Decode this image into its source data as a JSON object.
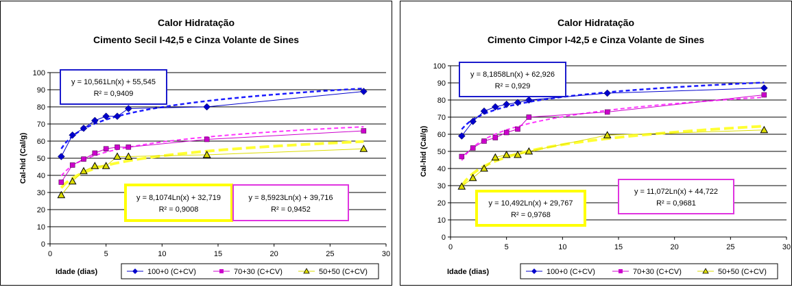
{
  "chart_data": [
    {
      "type": "scatter",
      "title": "Calor Hidratação",
      "subtitle": "Cimento Secil I-42,5 e Cinza Volante de Sines",
      "xlabel": "Idade (dias)",
      "ylabel": "Cal-hid (Cal/g)",
      "xlim": [
        0,
        30
      ],
      "ylim": [
        0,
        100
      ],
      "xticks": [
        "0",
        "5",
        "10",
        "15",
        "20",
        "25",
        "30"
      ],
      "yticks": [
        "0",
        "10",
        "20",
        "30",
        "40",
        "50",
        "60",
        "70",
        "80",
        "90",
        "100"
      ],
      "grid": true,
      "legend": "bottom",
      "series": [
        {
          "name": "100+0 (C+CV)",
          "color": "#0000cc",
          "marker": "diamond",
          "x": [
            1,
            2,
            3,
            4,
            5,
            6,
            7,
            14,
            28
          ],
          "y": [
            51,
            63.5,
            67.5,
            72,
            74.5,
            74.5,
            79,
            80,
            89
          ],
          "trend": {
            "a": 10.561,
            "b": 55.545,
            "color": "#1a1aff",
            "equation": "y = 10,561Ln(x) + 55,545",
            "r2": "R² = 0,9409"
          }
        },
        {
          "name": "70+30 (C+CV)",
          "color": "#cc00cc",
          "marker": "square",
          "x": [
            1,
            2,
            3,
            4,
            5,
            6,
            7,
            14,
            28
          ],
          "y": [
            36,
            46,
            49.5,
            53,
            55.5,
            56.5,
            56.5,
            61,
            66
          ],
          "trend": {
            "a": 8.5923,
            "b": 39.716,
            "color": "#ff33ff",
            "equation": "y = 8,5923Ln(x) + 39,716",
            "r2": "R² = 0,9452"
          }
        },
        {
          "name": "50+50 (C+CV)",
          "color": "#dddd00",
          "marker": "triangle",
          "x": [
            1,
            2,
            3,
            4,
            5,
            6,
            7,
            14,
            28
          ],
          "y": [
            28.5,
            36.5,
            42.5,
            45.5,
            45.5,
            51,
            51,
            52,
            55.5
          ],
          "trend": {
            "a": 8.1074,
            "b": 32.719,
            "color": "#ffff33",
            "equation": "y = 8,1074Ln(x) + 32,719",
            "r2": "R² = 0,9008"
          }
        }
      ]
    },
    {
      "type": "scatter",
      "title": "Calor Hidratação",
      "subtitle": "Cimento Cimpor I-42,5 e Cinza Volante de Sines",
      "xlabel": "Idade (dias)",
      "ylabel": "Cal-hid (Cal/g)",
      "xlim": [
        0,
        30
      ],
      "ylim": [
        0,
        100
      ],
      "xticks": [
        "0",
        "5",
        "10",
        "15",
        "20",
        "25",
        "30"
      ],
      "yticks": [
        "0",
        "10",
        "20",
        "30",
        "40",
        "50",
        "60",
        "70",
        "80",
        "90",
        "100"
      ],
      "grid": true,
      "legend": "bottom",
      "series": [
        {
          "name": "100+0 (C+CV)",
          "color": "#0000cc",
          "marker": "diamond",
          "x": [
            1,
            2,
            3,
            4,
            5,
            6,
            7,
            14,
            28
          ],
          "y": [
            59,
            67.5,
            73.5,
            76,
            77.5,
            78.5,
            80,
            84,
            87
          ],
          "trend": {
            "a": 8.1858,
            "b": 62.926,
            "color": "#1a1aff",
            "equation": "y = 8,1858Ln(x) + 62,926",
            "r2": "R² = 0,929"
          }
        },
        {
          "name": "70+30 (C+CV)",
          "color": "#cc00cc",
          "marker": "square",
          "x": [
            1,
            2,
            3,
            4,
            5,
            6,
            7,
            14,
            28
          ],
          "y": [
            47,
            52,
            56,
            58,
            61,
            63,
            70,
            73,
            83
          ],
          "trend": {
            "a": 11.072,
            "b": 44.722,
            "color": "#ff33ff",
            "equation": "y = 11,072Ln(x) + 44,722",
            "r2": "R² = 0,9681"
          }
        },
        {
          "name": "50+50 (C+CV)",
          "color": "#dddd00",
          "marker": "triangle",
          "x": [
            1,
            2,
            3,
            4,
            5,
            6,
            7,
            14,
            28
          ],
          "y": [
            29.5,
            34.5,
            40,
            46.5,
            48,
            48,
            50,
            59.5,
            62.5
          ],
          "trend": {
            "a": 10.492,
            "b": 29.767,
            "color": "#ffff33",
            "equation": "y = 10,492Ln(x) + 29,767",
            "r2": "R² = 0,9768"
          }
        }
      ]
    }
  ]
}
